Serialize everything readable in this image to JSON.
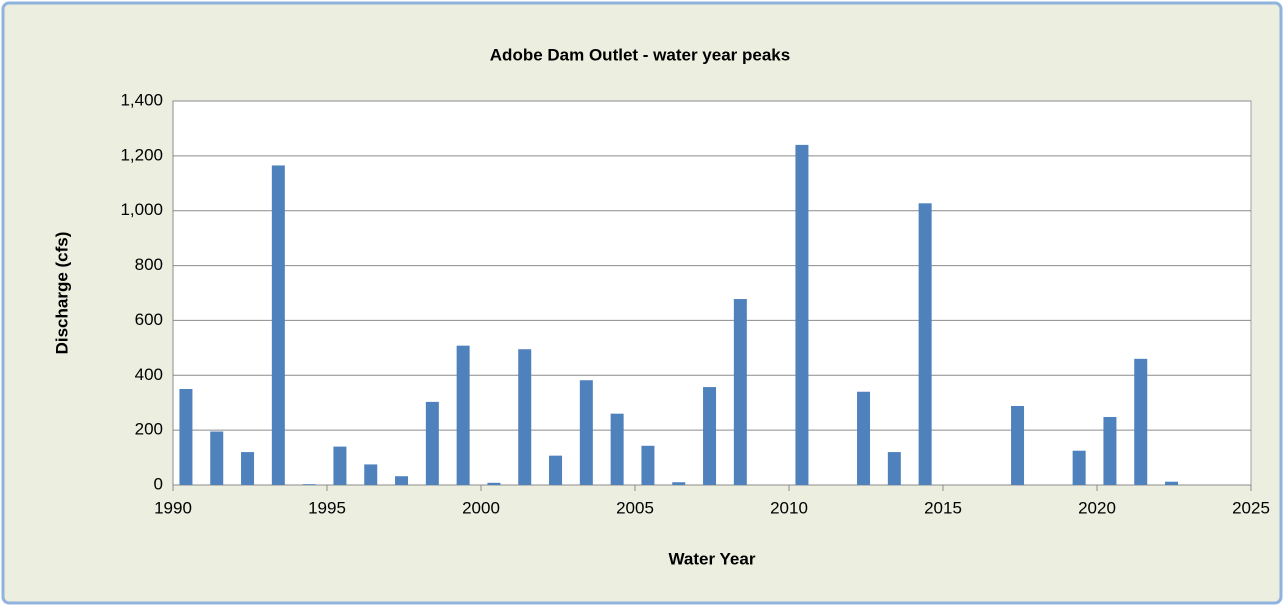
{
  "chart_data": {
    "type": "bar",
    "title": "Adobe Dam Outlet - water year peaks",
    "xlabel": "Water Year",
    "ylabel": "Discharge (cfs)",
    "x": [
      1990,
      1991,
      1992,
      1993,
      1994,
      1995,
      1996,
      1997,
      1998,
      1999,
      2000,
      2001,
      2002,
      2003,
      2004,
      2005,
      2006,
      2007,
      2008,
      2010,
      2012,
      2013,
      2014,
      2017,
      2019,
      2020,
      2021,
      2022
    ],
    "values": [
      350,
      195,
      120,
      1165,
      3,
      140,
      75,
      32,
      303,
      508,
      8,
      495,
      107,
      382,
      260,
      143,
      10,
      357,
      678,
      1240,
      340,
      120,
      1027,
      288,
      125,
      248,
      460,
      12
    ],
    "color": "#4f81bd",
    "xlim": [
      1990,
      2025
    ],
    "xticks": [
      1990,
      1995,
      2000,
      2005,
      2010,
      2015,
      2020,
      2025
    ],
    "ylim": [
      0,
      1400
    ],
    "yticks": [
      0,
      200,
      400,
      600,
      800,
      {
        "value": 1000,
        "label": "1,000"
      },
      {
        "value": 1200,
        "label": "1,200"
      },
      {
        "value": 1400,
        "label": "1,400"
      }
    ],
    "grid": true
  }
}
